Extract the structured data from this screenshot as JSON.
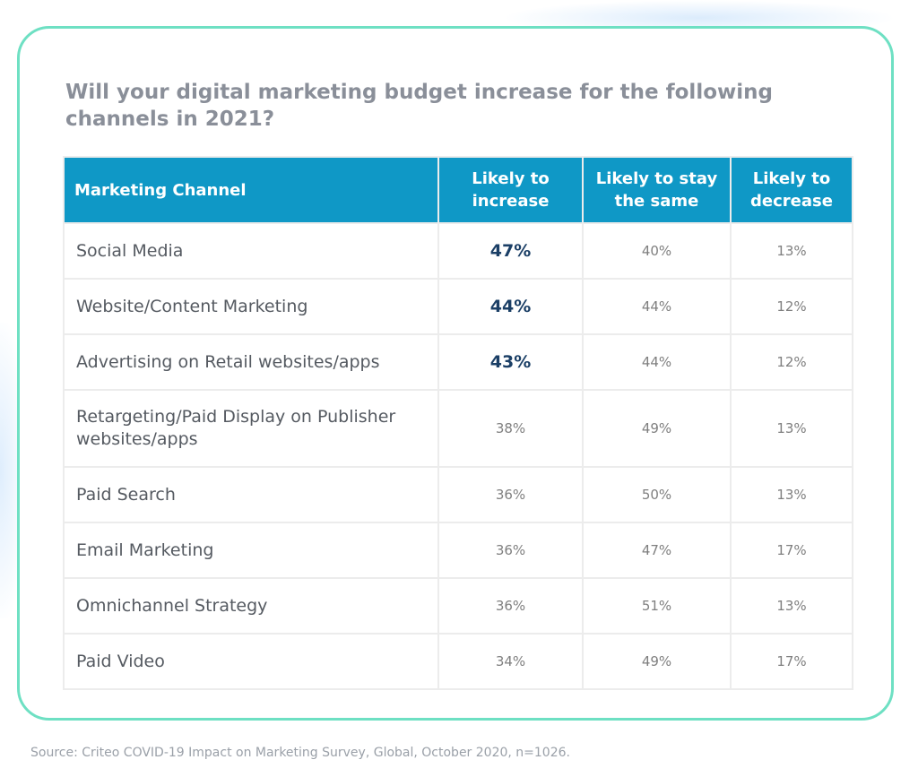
{
  "title": "Will your digital marketing budget increase for the following channels in 2021?",
  "source": "Source: Criteo COVID-19 Impact on Marketing Survey, Global, October 2020, n=1026.",
  "colors": {
    "header_bg": "#0f98c6",
    "card_border": "#6ee0c3",
    "highlight_text": "#1b3f66"
  },
  "chart_data": {
    "type": "table",
    "title": "Will your digital marketing budget increase for the following channels in 2021?",
    "columns": [
      "Marketing Channel",
      "Likely to increase",
      "Likely to stay the same",
      "Likely to decrease"
    ],
    "rows": [
      {
        "channel": "Social Media",
        "increase": "47%",
        "same": "40%",
        "decrease": "13%",
        "highlight": true
      },
      {
        "channel": "Website/Content Marketing",
        "increase": "44%",
        "same": "44%",
        "decrease": "12%",
        "highlight": true
      },
      {
        "channel": "Advertising on Retail websites/apps",
        "increase": "43%",
        "same": "44%",
        "decrease": "12%",
        "highlight": true
      },
      {
        "channel": "Retargeting/Paid Display on Publisher websites/apps",
        "increase": "38%",
        "same": "49%",
        "decrease": "13%",
        "highlight": false
      },
      {
        "channel": "Paid Search",
        "increase": "36%",
        "same": "50%",
        "decrease": "13%",
        "highlight": false
      },
      {
        "channel": "Email Marketing",
        "increase": "36%",
        "same": "47%",
        "decrease": "17%",
        "highlight": false
      },
      {
        "channel": "Omnichannel Strategy",
        "increase": "36%",
        "same": "51%",
        "decrease": "13%",
        "highlight": false
      },
      {
        "channel": "Paid Video",
        "increase": "34%",
        "same": "49%",
        "decrease": "17%",
        "highlight": false
      }
    ]
  }
}
